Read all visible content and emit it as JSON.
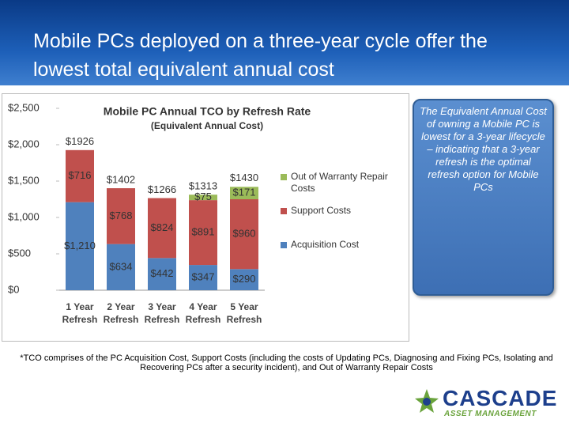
{
  "header": {
    "title": "Mobile PCs deployed on a three-year cycle offer the lowest total equivalent annual cost"
  },
  "chart_data": {
    "type": "bar",
    "stacked": true,
    "title": "Mobile PC Annual TCO by Refresh Rate",
    "subtitle": "(Equivalent Annual Cost)",
    "categories": [
      "1 Year Refresh",
      "2 Year Refresh",
      "3 Year Refresh",
      "4 Year Refresh",
      "5 Year Refresh"
    ],
    "series": [
      {
        "name": "Acquisition Cost",
        "color": "#4f81bd",
        "values": [
          1210,
          634,
          442,
          347,
          290
        ],
        "value_labels": [
          "$1,210",
          "$634",
          "$442",
          "$347",
          "$290"
        ]
      },
      {
        "name": "Support Costs",
        "color": "#c0504d",
        "values": [
          716,
          768,
          824,
          891,
          960
        ],
        "value_labels": [
          "$716",
          "$768",
          "$824",
          "$891",
          "$960"
        ]
      },
      {
        "name": "Out of Warranty Repair Costs",
        "color": "#9bbb59",
        "values": [
          null,
          null,
          null,
          75,
          171
        ],
        "value_labels": [
          null,
          null,
          null,
          "$75",
          "$171"
        ]
      }
    ],
    "totals": [
      1926,
      1402,
      1266,
      1313,
      1430
    ],
    "total_labels": [
      "$1926",
      "$1402",
      "$1266",
      "$1313",
      "$1430"
    ],
    "ylim": [
      0,
      2500
    ],
    "yticks": [
      {
        "value": 0,
        "label": "$0"
      },
      {
        "value": 500,
        "label": "$500"
      },
      {
        "value": 1000,
        "label": "$1,000"
      },
      {
        "value": 1500,
        "label": "$1,500"
      },
      {
        "value": 2000,
        "label": "$2,000"
      },
      {
        "value": 2500,
        "label": "$2,500"
      }
    ],
    "legend": "right"
  },
  "callout": {
    "text": "The Equivalent Annual Cost of owning a Mobile PC is lowest for a 3-year lifecycle – indicating that a 3-year refresh is the optimal refresh option for Mobile PCs"
  },
  "footnote": "*TCO comprises of the PC Acquisition Cost, Support Costs (including the costs of Updating PCs, Diagnosing and Fixing PCs, Isolating and Recovering PCs after a security incident), and Out of Warranty Repair Costs",
  "logo": {
    "name": "CASCADE",
    "tagline": "ASSET MANAGEMENT"
  }
}
